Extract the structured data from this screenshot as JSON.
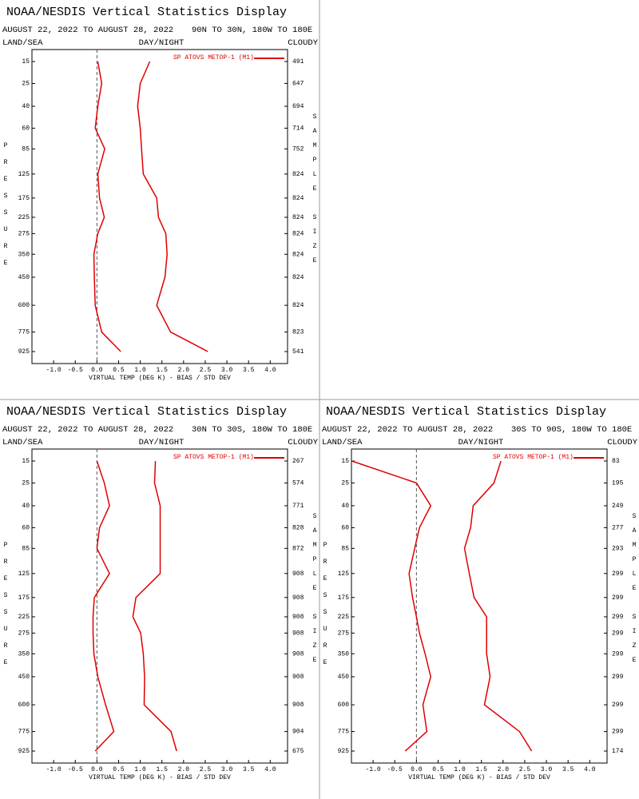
{
  "chart_data": [
    {
      "type": "profile",
      "title": "NOAA/NESDIS Vertical Statistics Display",
      "subtitle": "AUGUST 22, 2022 TO AUGUST 28, 2022",
      "region": "90N TO 30N, 180W TO 180E",
      "land_sea": "LAND/SEA",
      "day_night": "DAY/NIGHT",
      "cloudy": "CLOUDY",
      "y_label": "PRESSURE",
      "y2_label": "SAMPLE SIZE",
      "x_label": "VIRTUAL TEMP (DEG K) - BIAS / STD DEV",
      "levels": [
        15,
        25,
        40,
        60,
        85,
        125,
        175,
        225,
        275,
        350,
        450,
        600,
        775,
        925
      ],
      "sample_sizes": [
        491,
        647,
        694,
        714,
        752,
        824,
        824,
        824,
        824,
        824,
        824,
        824,
        823,
        541
      ],
      "series": [
        {
          "name": "SP ATOVS METOP-1 (M1)",
          "color": "#e00000",
          "bias": [
            0.02,
            0.11,
            0.02,
            -0.04,
            0.18,
            0.02,
            0.06,
            0.17,
            0.02,
            -0.07,
            -0.06,
            -0.04,
            0.11,
            0.55
          ],
          "std_dev": [
            1.22,
            1.0,
            0.94,
            1.0,
            1.03,
            1.07,
            1.38,
            1.42,
            1.59,
            1.62,
            1.57,
            1.38,
            1.7,
            2.56
          ]
        }
      ],
      "xlim": [
        -1.5,
        4.4
      ],
      "xticks": [
        {
          "value": -1,
          "label": "-1.0"
        },
        -0.5,
        {
          "value": 0,
          "label": "0.0"
        },
        0.5,
        {
          "value": 1,
          "label": "1.0"
        },
        1.5,
        {
          "value": 2,
          "label": "2.0"
        },
        2.5,
        {
          "value": 3,
          "label": "3.0"
        },
        3.5,
        {
          "value": 4,
          "label": "4.0"
        }
      ],
      "zero_line": true
    },
    {
      "type": "profile",
      "title": "NOAA/NESDIS Vertical Statistics Display",
      "subtitle": "AUGUST 22, 2022 TO AUGUST 28, 2022",
      "region": "30N TO 30S, 180W TO 180E",
      "land_sea": "LAND/SEA",
      "day_night": "DAY/NIGHT",
      "cloudy": "CLOUDY",
      "y_label": "PRESSURE",
      "y2_label": "SAMPLE SIZE",
      "x_label": "VIRTUAL TEMP (DEG K) - BIAS / STD DEV",
      "levels": [
        15,
        25,
        40,
        60,
        85,
        125,
        175,
        225,
        275,
        350,
        450,
        600,
        775,
        925
      ],
      "sample_sizes": [
        267,
        574,
        771,
        828,
        872,
        908,
        908,
        908,
        908,
        908,
        908,
        908,
        904,
        675
      ],
      "series": [
        {
          "name": "SP ATOVS METOP-1 (M1)",
          "color": "#e00000",
          "bias": [
            0.0,
            0.17,
            0.29,
            0.06,
            0.0,
            0.29,
            -0.06,
            -0.09,
            -0.09,
            -0.07,
            0.02,
            0.2,
            0.39,
            -0.04
          ],
          "std_dev": [
            1.35,
            1.33,
            1.46,
            1.46,
            1.46,
            1.46,
            0.9,
            0.83,
            1.01,
            1.07,
            1.1,
            1.09,
            1.71,
            1.84
          ]
        }
      ],
      "xlim": [
        -1.5,
        4.4
      ],
      "xticks": [
        {
          "value": -1,
          "label": "-1.0"
        },
        -0.5,
        {
          "value": 0,
          "label": "0.0"
        },
        0.5,
        {
          "value": 1,
          "label": "1.0"
        },
        1.5,
        {
          "value": 2,
          "label": "2.0"
        },
        2.5,
        {
          "value": 3,
          "label": "3.0"
        },
        3.5,
        {
          "value": 4,
          "label": "4.0"
        }
      ],
      "zero_line": true
    },
    {
      "type": "profile",
      "title": "NOAA/NESDIS Vertical Statistics Display",
      "subtitle": "AUGUST 22, 2022 TO AUGUST 28, 2022",
      "region": "30S TO 90S, 180W TO 180E",
      "land_sea": "LAND/SEA",
      "day_night": "DAY/NIGHT",
      "cloudy": "CLOUDY",
      "y_label": "PRESSURE",
      "y2_label": "SAMPLE SIZE",
      "x_label": "VIRTUAL TEMP (DEG K) - BIAS / STD DEV",
      "levels": [
        15,
        25,
        40,
        60,
        85,
        125,
        175,
        225,
        275,
        350,
        450,
        600,
        775,
        925
      ],
      "sample_sizes": [
        83,
        195,
        249,
        277,
        293,
        299,
        299,
        299,
        299,
        299,
        299,
        299,
        299,
        174
      ],
      "series": [
        {
          "name": "SP ATOVS METOP-1 (M1)",
          "color": "#e00000",
          "bias": [
            -1.49,
            0.0,
            0.33,
            0.07,
            -0.04,
            -0.17,
            -0.09,
            0.0,
            0.07,
            0.2,
            0.33,
            0.15,
            0.24,
            -0.26
          ],
          "std_dev": [
            1.95,
            1.79,
            1.31,
            1.25,
            1.11,
            1.22,
            1.33,
            1.62,
            1.62,
            1.62,
            1.7,
            1.57,
            2.38,
            2.66
          ]
        }
      ],
      "xlim": [
        -1.5,
        4.4
      ],
      "xticks": [
        {
          "value": -1,
          "label": "-1.0"
        },
        -0.5,
        {
          "value": 0,
          "label": "0.0"
        },
        0.5,
        {
          "value": 1,
          "label": "1.0"
        },
        1.5,
        {
          "value": 2,
          "label": "2.0"
        },
        2.5,
        {
          "value": 3,
          "label": "3.0"
        },
        3.5,
        {
          "value": 4,
          "label": "4.0"
        }
      ],
      "zero_line": true
    }
  ]
}
